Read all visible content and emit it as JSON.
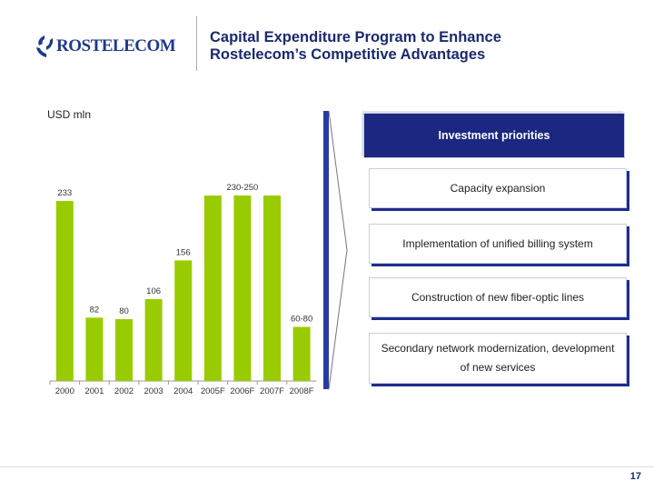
{
  "logo": {
    "text": "ROSTELECOM"
  },
  "title": {
    "line1": "Capital Expenditure Program to Enhance",
    "line2": "Rostelecom’s Competitive Advantages"
  },
  "priorities": {
    "header": "Investment priorities",
    "items": [
      "Capacity expansion",
      "Implementation of unified billing system",
      "Construction of new fiber-optic lines",
      "Secondary network modernization, development of new services"
    ]
  },
  "page_number": "17",
  "colors": {
    "bar": "#99cc00",
    "navy": "#1b2781",
    "title": "#1a2a6c"
  },
  "chart_data": {
    "type": "bar",
    "unit_label": "USD mln",
    "categories": [
      "2000",
      "2001",
      "2002",
      "2003",
      "2004",
      "2005F",
      "2006F",
      "2007F",
      "2008F"
    ],
    "values": [
      233,
      82,
      80,
      106,
      156,
      240,
      240,
      240,
      70
    ],
    "data_labels": [
      "233",
      "82",
      "80",
      "106",
      "156",
      "230-250",
      "",
      "",
      "60-80"
    ],
    "ylim": [
      0,
      260
    ]
  }
}
